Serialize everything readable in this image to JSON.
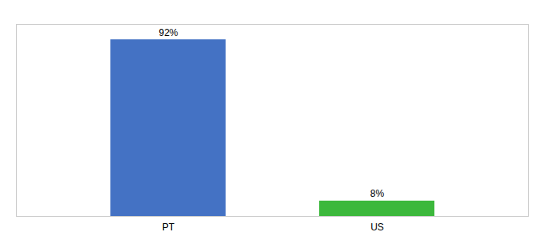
{
  "chart_data": {
    "type": "bar",
    "categories": [
      "PT",
      "US"
    ],
    "values": [
      92,
      8
    ],
    "value_labels": [
      "92%",
      "8%"
    ],
    "colors": [
      "#4472c4",
      "#3cb83c"
    ],
    "ylim": [
      0,
      100
    ],
    "data_labels": true,
    "tick_labels": "x",
    "grid": false
  }
}
